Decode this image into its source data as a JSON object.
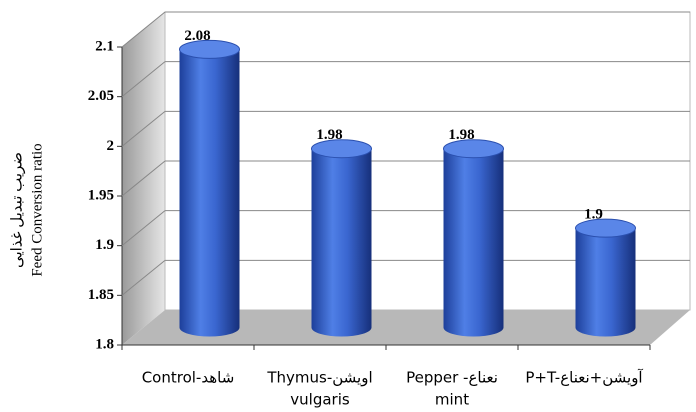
{
  "chart_data": {
    "type": "bar3d",
    "ylabel": [
      "ضریب تبدیل غذایی",
      "Feed Conversion ratio"
    ],
    "categories": [
      [
        "Control-شاهد"
      ],
      [
        "Thymus-اویشن",
        "vulgaris"
      ],
      [
        "Pepper -نعناع",
        "mint"
      ],
      [
        "P+T-آویشن+نعناع"
      ]
    ],
    "values": [
      2.08,
      1.98,
      1.98,
      1.9
    ],
    "color": "#2f5fc8",
    "ylim": [
      1.8,
      2.1
    ],
    "yticks": [
      1.8,
      1.85,
      1.9,
      1.95,
      2,
      2.05,
      2.1
    ],
    "grid": true
  }
}
